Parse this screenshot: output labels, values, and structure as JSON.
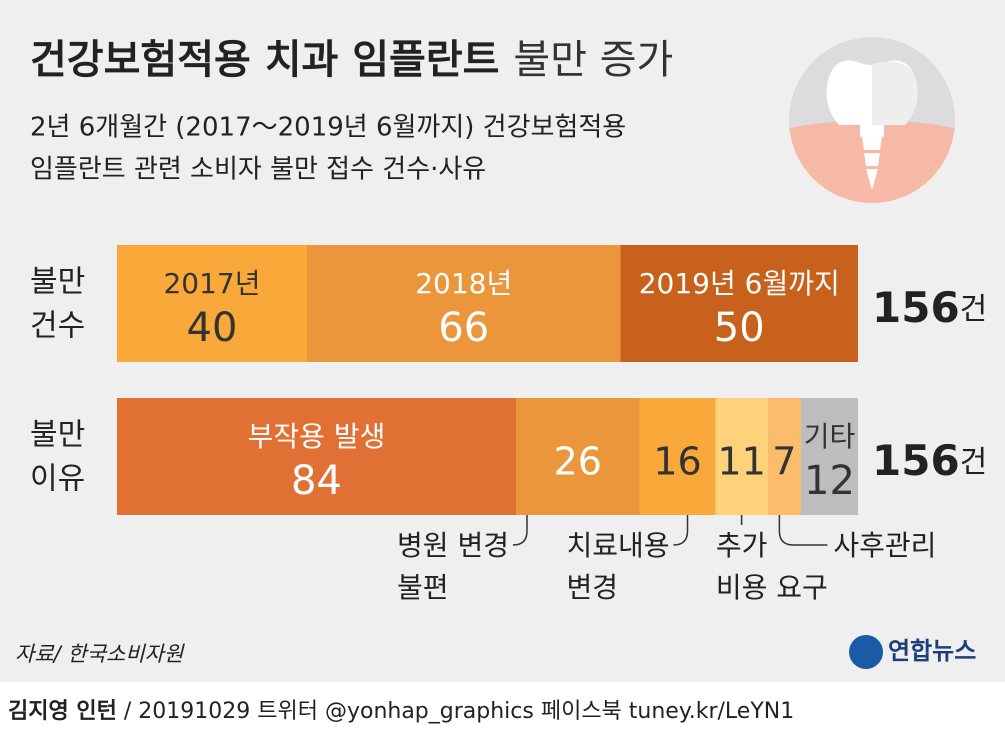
{
  "title": "건강보험적용 치과 임플란트",
  "title_light": "불만 증가",
  "subtitle": [
    "2년 6개월간 (2017～2019년 6월까지) 건강보험적용",
    "임플란트 관련 소비자 불만 접수 건수·사유"
  ],
  "chart_data": [
    {
      "type": "stacked_bar",
      "row_label": [
        "불만",
        "건수"
      ],
      "categories": [
        [
          "2017년"
        ],
        [
          "2018년"
        ],
        [
          "2019년 6월까지"
        ]
      ],
      "values": [
        40,
        66,
        50
      ],
      "colors": [
        "#f9a93a",
        "#ec963b",
        "#c8611c"
      ],
      "total": 156,
      "total_unit": "건",
      "xlim": [
        0,
        156
      ]
    },
    {
      "type": "stacked_bar",
      "row_label": [
        "불만",
        "이유"
      ],
      "categories": [
        [
          "부작용 발생"
        ],
        [
          "병원 변경",
          "불편"
        ],
        [
          "치료내용",
          "변경"
        ],
        [
          "추가",
          "비용 요구"
        ],
        [
          "사후관리"
        ],
        [
          "기타"
        ]
      ],
      "values": [
        84,
        26,
        16,
        11,
        7,
        12
      ],
      "colors": [
        "#e07033",
        "#ec963b",
        "#f9a93a",
        "#fdd27a",
        "#fbbd6b",
        "#bdbdbd"
      ],
      "total": 156,
      "total_unit": "건",
      "xlim": [
        0,
        156
      ]
    }
  ],
  "source": "자료/ 한국소비자원",
  "logo": "연합뉴스",
  "credit": {
    "author": "김지영 인턴",
    "text": "/ 20191029 트위터 @yonhap_graphics  페이스북 tuney.kr/LeYN1"
  }
}
